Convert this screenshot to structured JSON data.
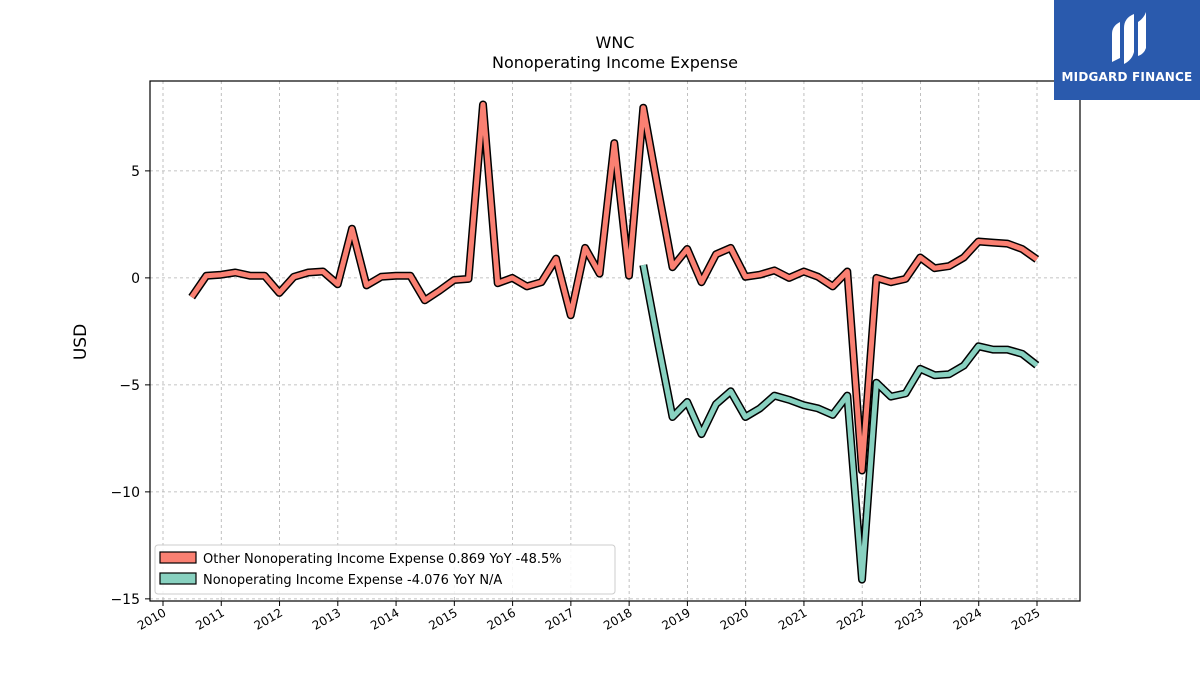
{
  "brand": {
    "name": "MIDGARD FINANCE",
    "bg_color": "#2a5aad"
  },
  "chart_data": {
    "type": "line",
    "title": "WNC",
    "subtitle": "Nonoperating Income Expense",
    "ylabel": "USD",
    "xlabel": "",
    "ylim": [
      -15.1,
      9.2
    ],
    "y_ticks": [
      5,
      0,
      -5,
      -10,
      -15
    ],
    "y_tick_labels": [
      "5",
      "0",
      "−5",
      "−10",
      "−15"
    ],
    "x_ticks": [
      "2010",
      "2011",
      "2012",
      "2013",
      "2014",
      "2015",
      "2016",
      "2017",
      "2018",
      "2019",
      "2020",
      "2021",
      "2022",
      "2023",
      "2024",
      "2025"
    ],
    "grid": true,
    "legend_position": "lower-left",
    "series": [
      {
        "name": "Other Nonoperating Income Expense",
        "legend_label": "Other Nonoperating Income Expense  0.869 YoY -48.5%",
        "color": "#fa8072",
        "points": [
          [
            "2010-06-30",
            -0.9
          ],
          [
            "2010-09-30",
            0.1
          ],
          [
            "2010-12-31",
            0.15
          ],
          [
            "2011-03-31",
            0.25
          ],
          [
            "2011-06-30",
            0.1
          ],
          [
            "2011-09-30",
            0.1
          ],
          [
            "2011-12-31",
            -0.7
          ],
          [
            "2012-03-31",
            0.05
          ],
          [
            "2012-06-30",
            0.25
          ],
          [
            "2012-09-30",
            0.3
          ],
          [
            "2012-12-31",
            -0.3
          ],
          [
            "2013-03-31",
            2.3
          ],
          [
            "2013-06-30",
            -0.35
          ],
          [
            "2013-09-30",
            0.05
          ],
          [
            "2013-12-31",
            0.1
          ],
          [
            "2014-03-31",
            0.1
          ],
          [
            "2014-06-30",
            -1.05
          ],
          [
            "2014-09-30",
            -0.6
          ],
          [
            "2014-12-31",
            -0.1
          ],
          [
            "2015-03-31",
            -0.05
          ],
          [
            "2015-06-30",
            8.1
          ],
          [
            "2015-09-30",
            -0.25
          ],
          [
            "2015-12-31",
            0.0
          ],
          [
            "2016-03-31",
            -0.4
          ],
          [
            "2016-06-30",
            -0.2
          ],
          [
            "2016-09-30",
            0.9
          ],
          [
            "2016-12-31",
            -1.75
          ],
          [
            "2017-03-31",
            1.4
          ],
          [
            "2017-06-30",
            0.2
          ],
          [
            "2017-09-30",
            6.3
          ],
          [
            "2017-12-31",
            0.1
          ],
          [
            "2018-03-31",
            7.95
          ],
          [
            "2018-06-30",
            4.2
          ],
          [
            "2018-09-30",
            0.5
          ],
          [
            "2018-12-31",
            1.35
          ],
          [
            "2019-03-31",
            -0.2
          ],
          [
            "2019-06-30",
            1.1
          ],
          [
            "2019-09-30",
            1.4
          ],
          [
            "2019-12-31",
            0.05
          ],
          [
            "2020-03-31",
            0.15
          ],
          [
            "2020-06-30",
            0.35
          ],
          [
            "2020-09-30",
            0.0
          ],
          [
            "2020-12-31",
            0.3
          ],
          [
            "2021-03-31",
            0.05
          ],
          [
            "2021-06-30",
            -0.4
          ],
          [
            "2021-09-30",
            0.3
          ],
          [
            "2021-12-31",
            -9.0
          ],
          [
            "2022-03-31",
            0.0
          ],
          [
            "2022-06-30",
            -0.2
          ],
          [
            "2022-09-30",
            -0.05
          ],
          [
            "2022-12-31",
            0.95
          ],
          [
            "2023-03-31",
            0.45
          ],
          [
            "2023-06-30",
            0.55
          ],
          [
            "2023-09-30",
            0.95
          ],
          [
            "2023-12-31",
            1.7
          ],
          [
            "2024-03-31",
            1.65
          ],
          [
            "2024-06-30",
            1.6
          ],
          [
            "2024-09-30",
            1.35
          ],
          [
            "2024-12-31",
            0.87
          ]
        ]
      },
      {
        "name": "Nonoperating Income Expense",
        "legend_label": "Nonoperating Income Expense  -4.076 YoY N/A",
        "color": "#88d1c0",
        "points": [
          [
            "2018-03-31",
            0.6
          ],
          [
            "2018-06-30",
            -3.0
          ],
          [
            "2018-09-30",
            -6.5
          ],
          [
            "2018-12-31",
            -5.8
          ],
          [
            "2019-03-31",
            -7.3
          ],
          [
            "2019-06-30",
            -5.9
          ],
          [
            "2019-09-30",
            -5.3
          ],
          [
            "2019-12-31",
            -6.5
          ],
          [
            "2020-03-31",
            -6.1
          ],
          [
            "2020-06-30",
            -5.5
          ],
          [
            "2020-09-30",
            -5.7
          ],
          [
            "2020-12-31",
            -5.95
          ],
          [
            "2021-03-31",
            -6.1
          ],
          [
            "2021-06-30",
            -6.4
          ],
          [
            "2021-09-30",
            -5.5
          ],
          [
            "2021-12-31",
            -14.1
          ],
          [
            "2022-03-31",
            -4.9
          ],
          [
            "2022-06-30",
            -5.55
          ],
          [
            "2022-09-30",
            -5.4
          ],
          [
            "2022-12-31",
            -4.25
          ],
          [
            "2023-03-31",
            -4.55
          ],
          [
            "2023-06-30",
            -4.5
          ],
          [
            "2023-09-30",
            -4.1
          ],
          [
            "2023-12-31",
            -3.2
          ],
          [
            "2024-03-31",
            -3.35
          ],
          [
            "2024-06-30",
            -3.35
          ],
          [
            "2024-09-30",
            -3.55
          ],
          [
            "2024-12-31",
            -4.08
          ]
        ]
      }
    ]
  }
}
